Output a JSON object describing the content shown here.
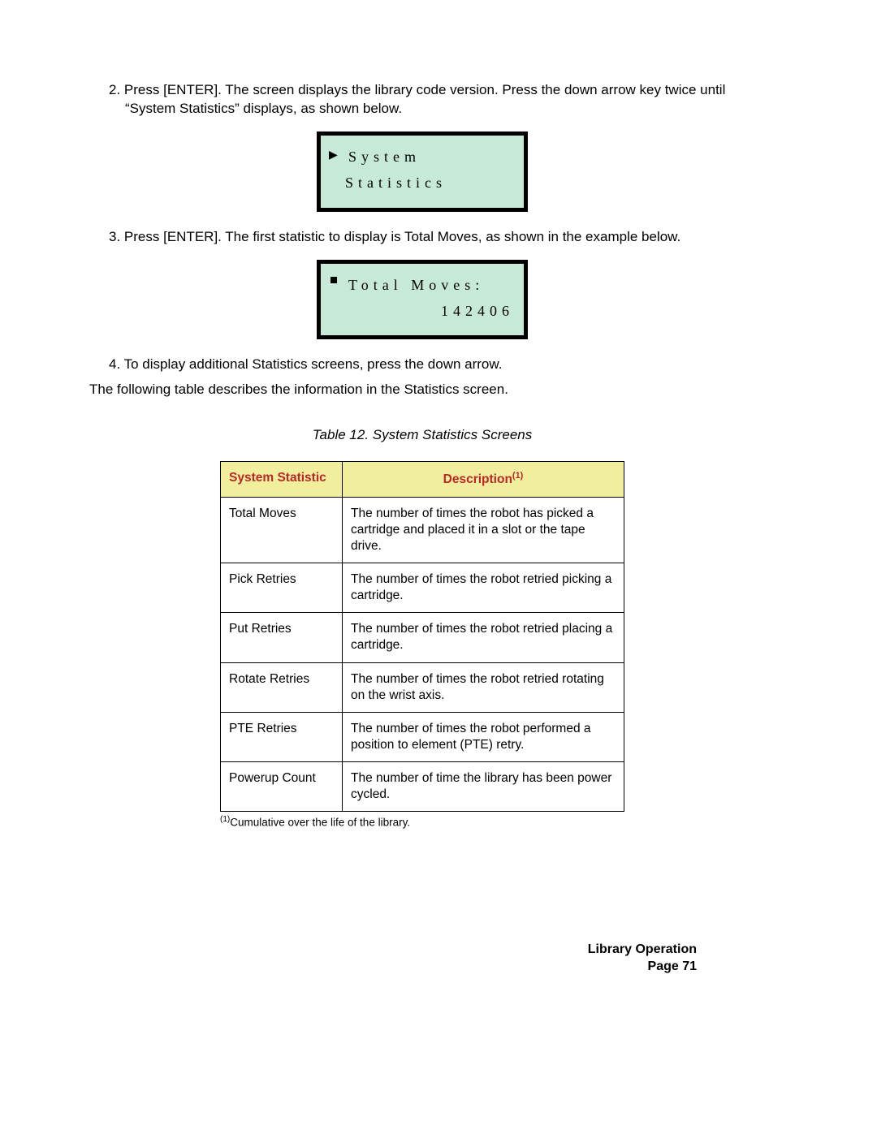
{
  "steps": {
    "s2": {
      "num": "2.",
      "text": "Press [ENTER]. The screen displays the library code version. Press the down arrow key twice until “System Statistics” displays, as shown below."
    },
    "s3": {
      "num": "3.",
      "text": "Press [ENTER]. The first statistic to display is Total Moves, as shown in the example below."
    },
    "s4": {
      "num": "4.",
      "text": "To display additional Statistics screens, press the down arrow."
    }
  },
  "intro_after_steps": "The following table describes the information in the Statistics screen.",
  "lcd1": {
    "bg": "#c7e9d8",
    "cursor_glyph": "▶",
    "line1": "System",
    "line2": "Statistics"
  },
  "lcd2": {
    "bg": "#c7e9d8",
    "cursor_color": "#000000",
    "line1": "Total Moves:",
    "line2": "142406"
  },
  "table": {
    "caption": "Table 12. System Statistics Screens",
    "header_bg": "#f1ef9e",
    "header_color": "#b92828",
    "col1_header": "System Statistic",
    "col2_header": "Description",
    "col2_sup": "(1)",
    "rows": [
      {
        "stat": "Total Moves",
        "desc": "The number of times the robot has picked a cartridge and placed it in a slot or the tape drive."
      },
      {
        "stat": "Pick Retries",
        "desc": "The number of times the robot retried picking a car­tridge."
      },
      {
        "stat": "Put Retries",
        "desc": "The number of times the robot retried placing a car­tridge."
      },
      {
        "stat": "Rotate Retries",
        "desc": "The number of times the robot retried rotating on the wrist axis."
      },
      {
        "stat": "PTE Retries",
        "desc": "The number of times the robot performed a position to element (PTE) retry."
      },
      {
        "stat": "Powerup Count",
        "desc": "The number of time the library has been power cycled."
      }
    ],
    "footnote_sup": "(1)",
    "footnote_text": "Cumulative over the life of the library."
  },
  "footer": {
    "title": "Library Operation",
    "page": "Page 71"
  }
}
